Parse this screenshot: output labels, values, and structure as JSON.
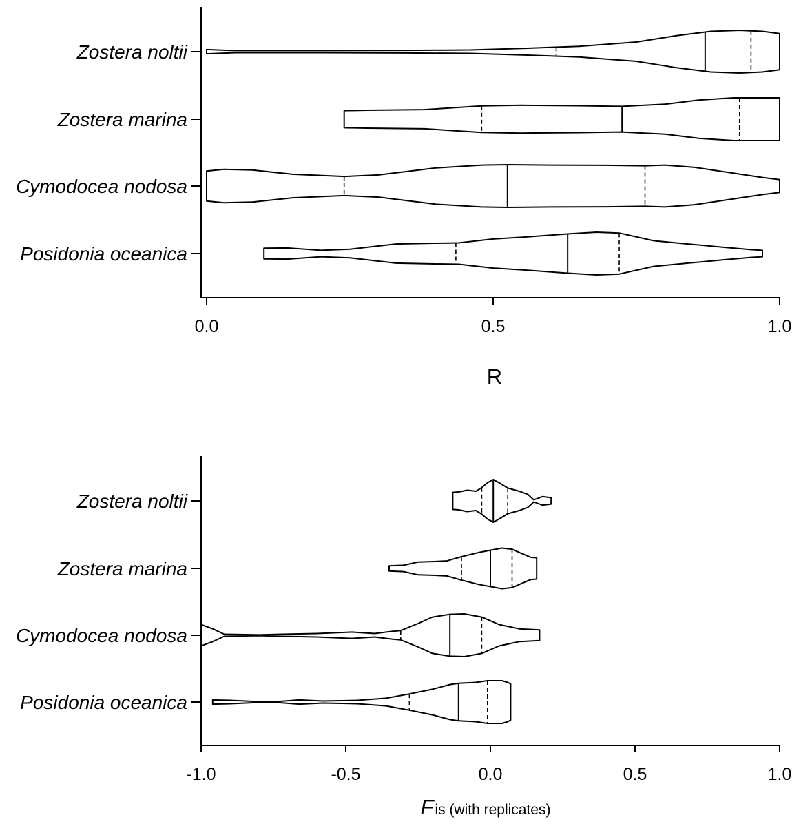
{
  "chart_data": [
    {
      "type": "violin",
      "title": "",
      "xlabel": "R",
      "xlabel_sub": "",
      "ylabel": "",
      "xlim": [
        0.0,
        1.0
      ],
      "xticks": [
        0.0,
        0.5,
        1.0
      ],
      "xtick_labels": [
        "0.0",
        "0.5",
        "1.0"
      ],
      "grid": false,
      "categories": [
        "Zostera noltii",
        "Zostera marina",
        "Cymodocea nodosa",
        "Posidonia oceanica"
      ],
      "series": [
        {
          "min": 0.0,
          "max": 1.0,
          "q1": 0.61,
          "median": 0.87,
          "q3": 0.95,
          "density": [
            [
              0.0,
              0.1
            ],
            [
              0.05,
              0.05
            ],
            [
              0.2,
              0.05
            ],
            [
              0.35,
              0.06
            ],
            [
              0.46,
              0.08
            ],
            [
              0.55,
              0.15
            ],
            [
              0.65,
              0.25
            ],
            [
              0.75,
              0.45
            ],
            [
              0.82,
              0.75
            ],
            [
              0.88,
              0.95
            ],
            [
              0.93,
              1.0
            ],
            [
              0.97,
              0.95
            ],
            [
              1.0,
              0.85
            ]
          ]
        },
        {
          "min": 0.24,
          "max": 1.0,
          "q1": 0.48,
          "median": 0.725,
          "q3": 0.93,
          "density": [
            [
              0.24,
              0.4
            ],
            [
              0.28,
              0.42
            ],
            [
              0.38,
              0.45
            ],
            [
              0.48,
              0.62
            ],
            [
              0.55,
              0.65
            ],
            [
              0.65,
              0.63
            ],
            [
              0.725,
              0.6
            ],
            [
              0.8,
              0.7
            ],
            [
              0.86,
              0.9
            ],
            [
              0.92,
              1.0
            ],
            [
              0.97,
              1.0
            ],
            [
              1.0,
              1.0
            ]
          ]
        },
        {
          "min": 0.0,
          "max": 1.0,
          "q1": 0.24,
          "median": 0.525,
          "q3": 0.765,
          "density": [
            [
              0.0,
              0.7
            ],
            [
              0.03,
              0.78
            ],
            [
              0.08,
              0.75
            ],
            [
              0.15,
              0.55
            ],
            [
              0.24,
              0.45
            ],
            [
              0.3,
              0.52
            ],
            [
              0.4,
              0.85
            ],
            [
              0.48,
              0.98
            ],
            [
              0.525,
              1.0
            ],
            [
              0.6,
              0.98
            ],
            [
              0.7,
              0.97
            ],
            [
              0.765,
              0.95
            ],
            [
              0.8,
              0.98
            ],
            [
              0.85,
              0.88
            ],
            [
              0.92,
              0.6
            ],
            [
              0.97,
              0.4
            ],
            [
              1.0,
              0.3
            ]
          ]
        },
        {
          "min": 0.1,
          "max": 0.97,
          "q1": 0.435,
          "median": 0.63,
          "q3": 0.72,
          "density": [
            [
              0.1,
              0.25
            ],
            [
              0.14,
              0.26
            ],
            [
              0.2,
              0.15
            ],
            [
              0.25,
              0.2
            ],
            [
              0.33,
              0.45
            ],
            [
              0.39,
              0.48
            ],
            [
              0.44,
              0.5
            ],
            [
              0.5,
              0.68
            ],
            [
              0.56,
              0.78
            ],
            [
              0.63,
              0.92
            ],
            [
              0.68,
              1.0
            ],
            [
              0.72,
              0.96
            ],
            [
              0.78,
              0.6
            ],
            [
              0.84,
              0.45
            ],
            [
              0.9,
              0.3
            ],
            [
              0.95,
              0.18
            ],
            [
              0.97,
              0.15
            ]
          ]
        }
      ]
    },
    {
      "type": "violin",
      "title": "",
      "xlabel": "F",
      "xlabel_sub": "is (with replicates)",
      "ylabel": "",
      "xlim": [
        -1.0,
        1.0
      ],
      "xticks": [
        -1.0,
        -0.5,
        0.0,
        0.5,
        1.0
      ],
      "xtick_labels": [
        "-1.0",
        "-0.5",
        "0.0",
        "0.5",
        "1.0"
      ],
      "grid": false,
      "categories": [
        "Zostera noltii",
        "Zostera marina",
        "Cymodocea nodosa",
        "Posidonia oceanica"
      ],
      "series": [
        {
          "min": -0.13,
          "max": 0.21,
          "q1": -0.03,
          "median": 0.01,
          "q3": 0.06,
          "density": [
            [
              -0.13,
              0.4
            ],
            [
              -0.11,
              0.42
            ],
            [
              -0.08,
              0.5
            ],
            [
              -0.05,
              0.45
            ],
            [
              -0.03,
              0.62
            ],
            [
              -0.01,
              0.85
            ],
            [
              0.01,
              1.0
            ],
            [
              0.03,
              0.85
            ],
            [
              0.06,
              0.6
            ],
            [
              0.1,
              0.45
            ],
            [
              0.13,
              0.3
            ],
            [
              0.15,
              0.05
            ],
            [
              0.18,
              0.2
            ],
            [
              0.21,
              0.15
            ]
          ]
        },
        {
          "min": -0.35,
          "max": 0.16,
          "q1": -0.1,
          "median": 0.0,
          "q3": 0.075,
          "density": [
            [
              -0.35,
              0.12
            ],
            [
              -0.3,
              0.15
            ],
            [
              -0.25,
              0.3
            ],
            [
              -0.2,
              0.32
            ],
            [
              -0.15,
              0.35
            ],
            [
              -0.1,
              0.55
            ],
            [
              -0.04,
              0.75
            ],
            [
              0.0,
              0.85
            ],
            [
              0.04,
              0.95
            ],
            [
              0.075,
              0.9
            ],
            [
              0.1,
              0.75
            ],
            [
              0.14,
              0.52
            ],
            [
              0.16,
              0.5
            ]
          ]
        },
        {
          "min": -1.0,
          "max": 0.17,
          "q1": -0.31,
          "median": -0.14,
          "q3": -0.03,
          "density": [
            [
              -1.0,
              0.5
            ],
            [
              -0.96,
              0.3
            ],
            [
              -0.92,
              0.05
            ],
            [
              -0.8,
              0.02
            ],
            [
              -0.72,
              0.05
            ],
            [
              -0.6,
              0.08
            ],
            [
              -0.48,
              0.15
            ],
            [
              -0.4,
              0.08
            ],
            [
              -0.34,
              0.18
            ],
            [
              -0.31,
              0.22
            ],
            [
              -0.25,
              0.55
            ],
            [
              -0.2,
              0.85
            ],
            [
              -0.14,
              0.98
            ],
            [
              -0.09,
              1.0
            ],
            [
              -0.03,
              0.85
            ],
            [
              0.03,
              0.5
            ],
            [
              0.1,
              0.3
            ],
            [
              0.17,
              0.25
            ]
          ]
        },
        {
          "min": -0.96,
          "max": 0.07,
          "q1": -0.28,
          "median": -0.11,
          "q3": -0.01,
          "density": [
            [
              -0.96,
              0.1
            ],
            [
              -0.9,
              0.08
            ],
            [
              -0.8,
              0.02
            ],
            [
              -0.74,
              0.02
            ],
            [
              -0.66,
              0.1
            ],
            [
              -0.58,
              0.05
            ],
            [
              -0.46,
              0.08
            ],
            [
              -0.36,
              0.18
            ],
            [
              -0.28,
              0.38
            ],
            [
              -0.2,
              0.6
            ],
            [
              -0.14,
              0.82
            ],
            [
              -0.11,
              0.88
            ],
            [
              -0.05,
              0.92
            ],
            [
              -0.01,
              1.0
            ],
            [
              0.04,
              1.0
            ],
            [
              0.06,
              0.92
            ],
            [
              0.07,
              0.85
            ]
          ]
        }
      ]
    }
  ]
}
